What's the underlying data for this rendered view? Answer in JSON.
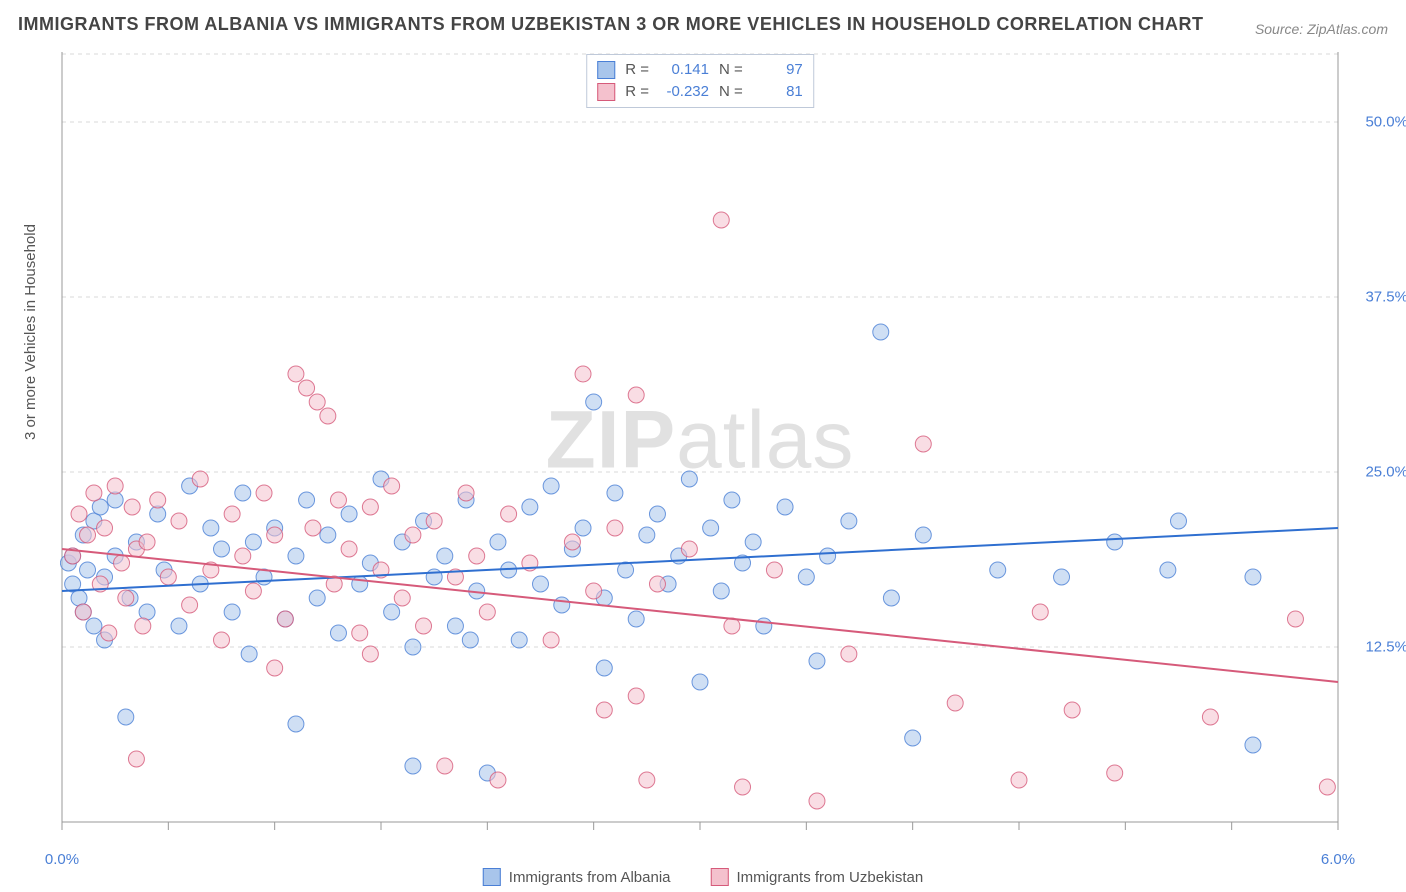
{
  "title": "IMMIGRANTS FROM ALBANIA VS IMMIGRANTS FROM UZBEKISTAN 3 OR MORE VEHICLES IN HOUSEHOLD CORRELATION CHART",
  "source": "Source: ZipAtlas.com",
  "watermark": "ZIPatlas",
  "y_axis_label": "3 or more Vehicles in Household",
  "chart": {
    "type": "scatter",
    "xlim": [
      0.0,
      6.0
    ],
    "ylim": [
      0.0,
      55.0
    ],
    "x_ticks": [
      {
        "v": 0.0,
        "l": "0.0%"
      },
      {
        "v": 6.0,
        "l": "6.0%"
      }
    ],
    "y_ticks": [
      {
        "v": 12.5,
        "l": "12.5%"
      },
      {
        "v": 25.0,
        "l": "25.0%"
      },
      {
        "v": 37.5,
        "l": "37.5%"
      },
      {
        "v": 50.0,
        "l": "50.0%"
      }
    ],
    "x_minor_tick_step": 0.5,
    "grid_color": "#d9d9d9",
    "background_color": "#ffffff",
    "axis_font_color": "#4a7fd6",
    "point_radius": 8,
    "point_opacity": 0.55,
    "series": [
      {
        "name": "Immigrants from Albania",
        "color_fill": "#a8c5eb",
        "color_stroke": "#4a7fd6",
        "R": "0.141",
        "N": "97",
        "trend": {
          "x1": 0.0,
          "y1": 16.5,
          "x2": 6.0,
          "y2": 21.0,
          "color": "#2f6fd0",
          "width": 2
        },
        "points": [
          [
            0.03,
            18.5
          ],
          [
            0.05,
            17.0
          ],
          [
            0.05,
            19.0
          ],
          [
            0.08,
            16.0
          ],
          [
            0.1,
            20.5
          ],
          [
            0.1,
            15.0
          ],
          [
            0.12,
            18.0
          ],
          [
            0.15,
            21.5
          ],
          [
            0.15,
            14.0
          ],
          [
            0.18,
            22.5
          ],
          [
            0.2,
            17.5
          ],
          [
            0.2,
            13.0
          ],
          [
            0.25,
            23.0
          ],
          [
            0.25,
            19.0
          ],
          [
            0.3,
            7.5
          ],
          [
            0.32,
            16.0
          ],
          [
            0.35,
            20.0
          ],
          [
            0.4,
            15.0
          ],
          [
            0.45,
            22.0
          ],
          [
            0.48,
            18.0
          ],
          [
            0.55,
            14.0
          ],
          [
            0.6,
            24.0
          ],
          [
            0.65,
            17.0
          ],
          [
            0.7,
            21.0
          ],
          [
            0.75,
            19.5
          ],
          [
            0.8,
            15.0
          ],
          [
            0.85,
            23.5
          ],
          [
            0.88,
            12.0
          ],
          [
            0.9,
            20.0
          ],
          [
            0.95,
            17.5
          ],
          [
            1.0,
            21.0
          ],
          [
            1.05,
            14.5
          ],
          [
            1.1,
            19.0
          ],
          [
            1.1,
            7.0
          ],
          [
            1.15,
            23.0
          ],
          [
            1.2,
            16.0
          ],
          [
            1.25,
            20.5
          ],
          [
            1.3,
            13.5
          ],
          [
            1.35,
            22.0
          ],
          [
            1.4,
            17.0
          ],
          [
            1.45,
            18.5
          ],
          [
            1.5,
            24.5
          ],
          [
            1.55,
            15.0
          ],
          [
            1.6,
            20.0
          ],
          [
            1.65,
            12.5
          ],
          [
            1.65,
            4.0
          ],
          [
            1.7,
            21.5
          ],
          [
            1.75,
            17.5
          ],
          [
            1.8,
            19.0
          ],
          [
            1.85,
            14.0
          ],
          [
            1.9,
            23.0
          ],
          [
            1.92,
            13.0
          ],
          [
            1.95,
            16.5
          ],
          [
            2.0,
            3.5
          ],
          [
            2.05,
            20.0
          ],
          [
            2.1,
            18.0
          ],
          [
            2.15,
            13.0
          ],
          [
            2.2,
            22.5
          ],
          [
            2.25,
            17.0
          ],
          [
            2.3,
            24.0
          ],
          [
            2.35,
            15.5
          ],
          [
            2.4,
            19.5
          ],
          [
            2.45,
            21.0
          ],
          [
            2.5,
            30.0
          ],
          [
            2.55,
            16.0
          ],
          [
            2.55,
            11.0
          ],
          [
            2.6,
            23.5
          ],
          [
            2.65,
            18.0
          ],
          [
            2.7,
            14.5
          ],
          [
            2.75,
            20.5
          ],
          [
            2.8,
            22.0
          ],
          [
            2.85,
            17.0
          ],
          [
            2.9,
            19.0
          ],
          [
            2.95,
            24.5
          ],
          [
            3.0,
            10.0
          ],
          [
            3.05,
            21.0
          ],
          [
            3.1,
            16.5
          ],
          [
            3.15,
            23.0
          ],
          [
            3.2,
            18.5
          ],
          [
            3.25,
            20.0
          ],
          [
            3.3,
            14.0
          ],
          [
            3.4,
            22.5
          ],
          [
            3.5,
            17.5
          ],
          [
            3.55,
            11.5
          ],
          [
            3.6,
            19.0
          ],
          [
            3.7,
            21.5
          ],
          [
            3.85,
            35.0
          ],
          [
            3.9,
            16.0
          ],
          [
            4.0,
            6.0
          ],
          [
            4.05,
            20.5
          ],
          [
            4.4,
            18.0
          ],
          [
            4.7,
            17.5
          ],
          [
            4.95,
            20.0
          ],
          [
            5.2,
            18.0
          ],
          [
            5.25,
            21.5
          ],
          [
            5.6,
            17.5
          ],
          [
            5.6,
            5.5
          ]
        ]
      },
      {
        "name": "Immigrants from Uzbekistan",
        "color_fill": "#f4c1cd",
        "color_stroke": "#d65a7a",
        "R": "-0.232",
        "N": "81",
        "trend": {
          "x1": 0.0,
          "y1": 19.5,
          "x2": 6.0,
          "y2": 10.0,
          "color": "#d65a7a",
          "width": 2
        },
        "points": [
          [
            0.05,
            19.0
          ],
          [
            0.08,
            22.0
          ],
          [
            0.1,
            15.0
          ],
          [
            0.12,
            20.5
          ],
          [
            0.15,
            23.5
          ],
          [
            0.18,
            17.0
          ],
          [
            0.2,
            21.0
          ],
          [
            0.22,
            13.5
          ],
          [
            0.25,
            24.0
          ],
          [
            0.28,
            18.5
          ],
          [
            0.3,
            16.0
          ],
          [
            0.33,
            22.5
          ],
          [
            0.35,
            19.5
          ],
          [
            0.35,
            4.5
          ],
          [
            0.38,
            14.0
          ],
          [
            0.4,
            20.0
          ],
          [
            0.45,
            23.0
          ],
          [
            0.5,
            17.5
          ],
          [
            0.55,
            21.5
          ],
          [
            0.6,
            15.5
          ],
          [
            0.65,
            24.5
          ],
          [
            0.7,
            18.0
          ],
          [
            0.75,
            13.0
          ],
          [
            0.8,
            22.0
          ],
          [
            0.85,
            19.0
          ],
          [
            0.9,
            16.5
          ],
          [
            0.95,
            23.5
          ],
          [
            1.0,
            20.5
          ],
          [
            1.0,
            11.0
          ],
          [
            1.05,
            14.5
          ],
          [
            1.1,
            32.0
          ],
          [
            1.15,
            31.0
          ],
          [
            1.18,
            21.0
          ],
          [
            1.2,
            30.0
          ],
          [
            1.25,
            29.0
          ],
          [
            1.28,
            17.0
          ],
          [
            1.3,
            23.0
          ],
          [
            1.35,
            19.5
          ],
          [
            1.4,
            13.5
          ],
          [
            1.45,
            22.5
          ],
          [
            1.45,
            12.0
          ],
          [
            1.5,
            18.0
          ],
          [
            1.55,
            24.0
          ],
          [
            1.6,
            16.0
          ],
          [
            1.65,
            20.5
          ],
          [
            1.7,
            14.0
          ],
          [
            1.75,
            21.5
          ],
          [
            1.8,
            4.0
          ],
          [
            1.85,
            17.5
          ],
          [
            1.9,
            23.5
          ],
          [
            1.95,
            19.0
          ],
          [
            2.0,
            15.0
          ],
          [
            2.05,
            3.0
          ],
          [
            2.1,
            22.0
          ],
          [
            2.2,
            18.5
          ],
          [
            2.3,
            13.0
          ],
          [
            2.4,
            20.0
          ],
          [
            2.45,
            32.0
          ],
          [
            2.5,
            16.5
          ],
          [
            2.55,
            8.0
          ],
          [
            2.6,
            21.0
          ],
          [
            2.7,
            9.0
          ],
          [
            2.7,
            30.5
          ],
          [
            2.75,
            3.0
          ],
          [
            2.8,
            17.0
          ],
          [
            2.95,
            19.5
          ],
          [
            3.1,
            43.0
          ],
          [
            3.15,
            14.0
          ],
          [
            3.2,
            2.5
          ],
          [
            3.35,
            18.0
          ],
          [
            3.55,
            1.5
          ],
          [
            3.7,
            12.0
          ],
          [
            4.05,
            27.0
          ],
          [
            4.2,
            8.5
          ],
          [
            4.5,
            3.0
          ],
          [
            4.6,
            15.0
          ],
          [
            4.75,
            8.0
          ],
          [
            4.95,
            3.5
          ],
          [
            5.4,
            7.5
          ],
          [
            5.8,
            14.5
          ],
          [
            5.95,
            2.5
          ]
        ]
      }
    ]
  },
  "stats_box": {
    "rows": [
      {
        "swatch_fill": "#a8c5eb",
        "swatch_stroke": "#4a7fd6",
        "r_label": "R =",
        "r_val": "0.141",
        "n_label": "N =",
        "n_val": "97"
      },
      {
        "swatch_fill": "#f4c1cd",
        "swatch_stroke": "#d65a7a",
        "r_label": "R =",
        "r_val": "-0.232",
        "n_label": "N =",
        "n_val": "81"
      }
    ]
  },
  "bottom_legend": [
    {
      "swatch_fill": "#a8c5eb",
      "swatch_stroke": "#4a7fd6",
      "label": "Immigrants from Albania"
    },
    {
      "swatch_fill": "#f4c1cd",
      "swatch_stroke": "#d65a7a",
      "label": "Immigrants from Uzbekistan"
    }
  ]
}
